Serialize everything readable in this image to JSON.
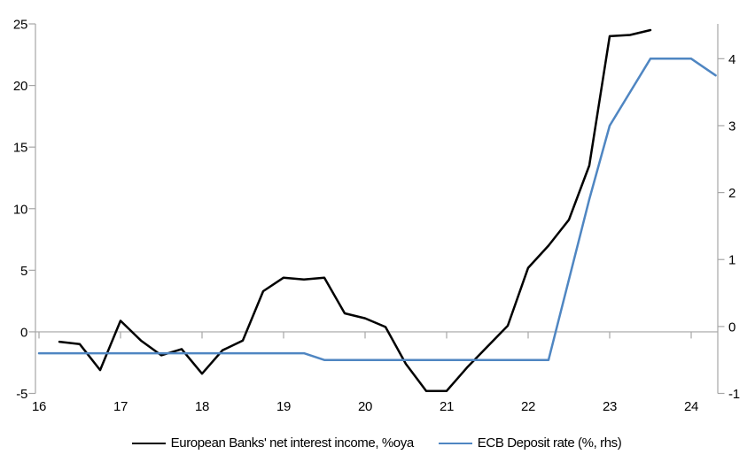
{
  "colors": {
    "nii_line": "#000000",
    "deposit_rate_line": "#4F86C2",
    "axis": "#A6A6A6",
    "label_text": "#000000",
    "background": "#FFFFFF"
  },
  "legend": {
    "items": [
      {
        "label": "European Banks' net interest income, %oya",
        "color": "#000000"
      },
      {
        "label": "ECB Deposit rate (%, rhs)",
        "color": "#4F86C2"
      }
    ]
  },
  "chart_data": {
    "type": "line",
    "title": "",
    "xlabel": "",
    "ylabel_left": "",
    "ylabel_right": "",
    "grid": "zero-line-only",
    "legend_position": "bottom",
    "x_axis": {
      "tick_labels": [
        "16",
        "17",
        "18",
        "19",
        "20",
        "21",
        "22",
        "23",
        "24"
      ],
      "tick_values": [
        16,
        17,
        18,
        19,
        20,
        21,
        22,
        23,
        24
      ],
      "min": 16,
      "max": 24.3
    },
    "left_axis": {
      "tick_labels": [
        "-5",
        "0",
        "5",
        "10",
        "15",
        "20",
        "25"
      ],
      "tick_values": [
        -5,
        0,
        5,
        10,
        15,
        20,
        25
      ],
      "min": -5,
      "max": 25
    },
    "right_axis": {
      "tick_labels": [
        "-1",
        "0",
        "1",
        "2",
        "3",
        "4"
      ],
      "tick_values": [
        -1,
        0,
        1,
        2,
        3,
        4
      ],
      "min": -1,
      "max": 4.52
    },
    "series": [
      {
        "name": "European Banks' net interest income, %oya",
        "axis": "left",
        "color": "#000000",
        "x": [
          16.25,
          16.5,
          16.75,
          17.0,
          17.25,
          17.5,
          17.75,
          18.0,
          18.25,
          18.5,
          18.75,
          19.0,
          19.25,
          19.5,
          19.75,
          20.0,
          20.25,
          20.5,
          20.75,
          21.0,
          21.25,
          21.5,
          21.75,
          22.0,
          22.25,
          22.5,
          22.75,
          23.0,
          23.25,
          23.5
        ],
        "values": [
          -0.8,
          -1.0,
          -3.1,
          0.9,
          -0.7,
          -1.9,
          -1.4,
          -3.4,
          -1.5,
          -0.7,
          3.3,
          4.4,
          4.25,
          4.4,
          1.5,
          1.1,
          0.4,
          -2.6,
          -4.8,
          -4.8,
          -2.9,
          -1.2,
          0.5,
          5.2,
          7.0,
          9.1,
          13.5,
          24.0,
          24.1,
          24.5
        ]
      },
      {
        "name": "ECB Deposit rate (%, rhs)",
        "axis": "right",
        "color": "#4F86C2",
        "x": [
          16.0,
          16.25,
          16.5,
          16.75,
          17.0,
          17.25,
          17.5,
          17.75,
          18.0,
          18.25,
          18.5,
          18.75,
          19.0,
          19.25,
          19.5,
          19.75,
          20.0,
          20.25,
          20.5,
          20.75,
          21.0,
          21.25,
          21.5,
          21.75,
          22.0,
          22.25,
          22.5,
          22.75,
          23.0,
          23.25,
          23.5,
          23.75,
          24.0,
          24.3
        ],
        "values": [
          -0.4,
          -0.4,
          -0.4,
          -0.4,
          -0.4,
          -0.4,
          -0.4,
          -0.4,
          -0.4,
          -0.4,
          -0.4,
          -0.4,
          -0.4,
          -0.4,
          -0.5,
          -0.5,
          -0.5,
          -0.5,
          -0.5,
          -0.5,
          -0.5,
          -0.5,
          -0.5,
          -0.5,
          -0.5,
          -0.5,
          0.7,
          1.9,
          3.0,
          3.5,
          4.0,
          4.0,
          4.0,
          3.75
        ]
      }
    ]
  }
}
